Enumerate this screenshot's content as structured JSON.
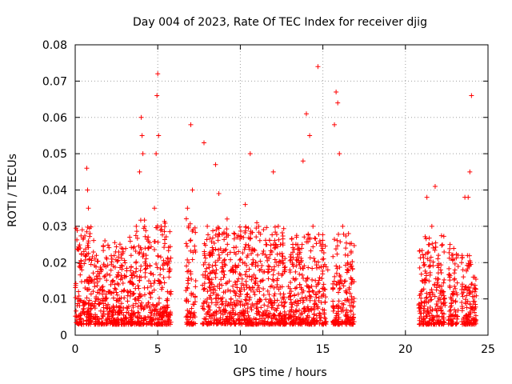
{
  "chart_data": {
    "type": "scatter",
    "title": "Day 004 of 2023, Rate Of TEC Index for receiver djig",
    "xlabel": "GPS time / hours",
    "ylabel": "ROTI / TECUs",
    "xlim": [
      0,
      25
    ],
    "ylim": [
      0,
      0.08
    ],
    "xticks": [
      0,
      5,
      10,
      15,
      20,
      25
    ],
    "xtick_labels": [
      "0",
      "5",
      "10",
      "15",
      "20",
      "25"
    ],
    "yticks": [
      0,
      0.01,
      0.02,
      0.03,
      0.04,
      0.05,
      0.06,
      0.07,
      0.08
    ],
    "ytick_labels": [
      "0",
      "0.01",
      "0.02",
      "0.03",
      "0.04",
      "0.05",
      "0.06",
      "0.07",
      "0.08"
    ],
    "grid": true,
    "marker": "+",
    "color": "#ff0000",
    "series": [
      {
        "name": "ROTI",
        "points": [
          [
            0.1,
            0.005
          ],
          [
            0.2,
            0.012
          ],
          [
            0.3,
            0.024
          ],
          [
            0.4,
            0.018
          ],
          [
            0.5,
            0.009
          ],
          [
            0.6,
            0.022
          ],
          [
            0.7,
            0.046
          ],
          [
            0.75,
            0.04
          ],
          [
            0.8,
            0.035
          ],
          [
            0.9,
            0.028
          ],
          [
            1.0,
            0.015
          ],
          [
            1.2,
            0.021
          ],
          [
            1.4,
            0.01
          ],
          [
            1.6,
            0.018
          ],
          [
            1.8,
            0.026
          ],
          [
            2.0,
            0.012
          ],
          [
            2.3,
            0.019
          ],
          [
            2.5,
            0.008
          ],
          [
            2.8,
            0.024
          ],
          [
            3.0,
            0.016
          ],
          [
            3.3,
            0.027
          ],
          [
            3.5,
            0.014
          ],
          [
            3.7,
            0.03
          ],
          [
            3.9,
            0.045
          ],
          [
            4.0,
            0.06
          ],
          [
            4.05,
            0.055
          ],
          [
            4.1,
            0.05
          ],
          [
            4.3,
            0.022
          ],
          [
            4.6,
            0.017
          ],
          [
            4.8,
            0.035
          ],
          [
            4.9,
            0.05
          ],
          [
            4.95,
            0.066
          ],
          [
            5.0,
            0.072
          ],
          [
            5.05,
            0.055
          ],
          [
            5.2,
            0.03
          ],
          [
            5.5,
            0.02
          ],
          [
            5.8,
            0.012
          ],
          [
            6.8,
            0.035
          ],
          [
            7.0,
            0.058
          ],
          [
            7.1,
            0.04
          ],
          [
            7.3,
            0.015
          ],
          [
            7.8,
            0.053
          ],
          [
            8.0,
            0.03
          ],
          [
            8.3,
            0.022
          ],
          [
            8.5,
            0.047
          ],
          [
            8.7,
            0.039
          ],
          [
            8.9,
            0.02
          ],
          [
            9.2,
            0.032
          ],
          [
            9.5,
            0.018
          ],
          [
            9.8,
            0.027
          ],
          [
            10.0,
            0.012
          ],
          [
            10.3,
            0.036
          ],
          [
            10.6,
            0.05
          ],
          [
            10.8,
            0.02
          ],
          [
            11.0,
            0.031
          ],
          [
            11.3,
            0.015
          ],
          [
            11.6,
            0.025
          ],
          [
            12.0,
            0.045
          ],
          [
            12.3,
            0.03
          ],
          [
            12.6,
            0.02
          ],
          [
            13.0,
            0.018
          ],
          [
            13.4,
            0.027
          ],
          [
            13.8,
            0.048
          ],
          [
            14.0,
            0.061
          ],
          [
            14.2,
            0.055
          ],
          [
            14.4,
            0.03
          ],
          [
            14.7,
            0.074
          ],
          [
            15.0,
            0.025
          ],
          [
            15.3,
            0.018
          ],
          [
            15.7,
            0.058
          ],
          [
            15.8,
            0.067
          ],
          [
            15.9,
            0.064
          ],
          [
            16.0,
            0.05
          ],
          [
            16.2,
            0.03
          ],
          [
            16.5,
            0.02
          ],
          [
            21.1,
            0.02
          ],
          [
            21.3,
            0.038
          ],
          [
            21.6,
            0.03
          ],
          [
            21.8,
            0.041
          ],
          [
            22.0,
            0.022
          ],
          [
            22.3,
            0.012
          ],
          [
            22.7,
            0.025
          ],
          [
            23.0,
            0.018
          ],
          [
            23.4,
            0.02
          ],
          [
            23.6,
            0.038
          ],
          [
            23.8,
            0.038
          ],
          [
            23.9,
            0.045
          ],
          [
            24.0,
            0.066
          ]
        ]
      }
    ],
    "clusters": [
      {
        "x0": 0.0,
        "x1": 1.2,
        "peak": 0.03
      },
      {
        "x0": 1.2,
        "x1": 3.6,
        "peak": 0.026
      },
      {
        "x0": 3.6,
        "x1": 5.8,
        "peak": 0.032
      },
      {
        "x0": 6.7,
        "x1": 7.3,
        "peak": 0.033
      },
      {
        "x0": 7.7,
        "x1": 12.8,
        "peak": 0.03
      },
      {
        "x0": 12.9,
        "x1": 15.2,
        "peak": 0.028
      },
      {
        "x0": 15.6,
        "x1": 16.9,
        "peak": 0.028
      },
      {
        "x0": 20.8,
        "x1": 22.4,
        "peak": 0.028
      },
      {
        "x0": 22.6,
        "x1": 23.2,
        "peak": 0.024
      },
      {
        "x0": 23.4,
        "x1": 24.3,
        "peak": 0.022
      }
    ]
  }
}
